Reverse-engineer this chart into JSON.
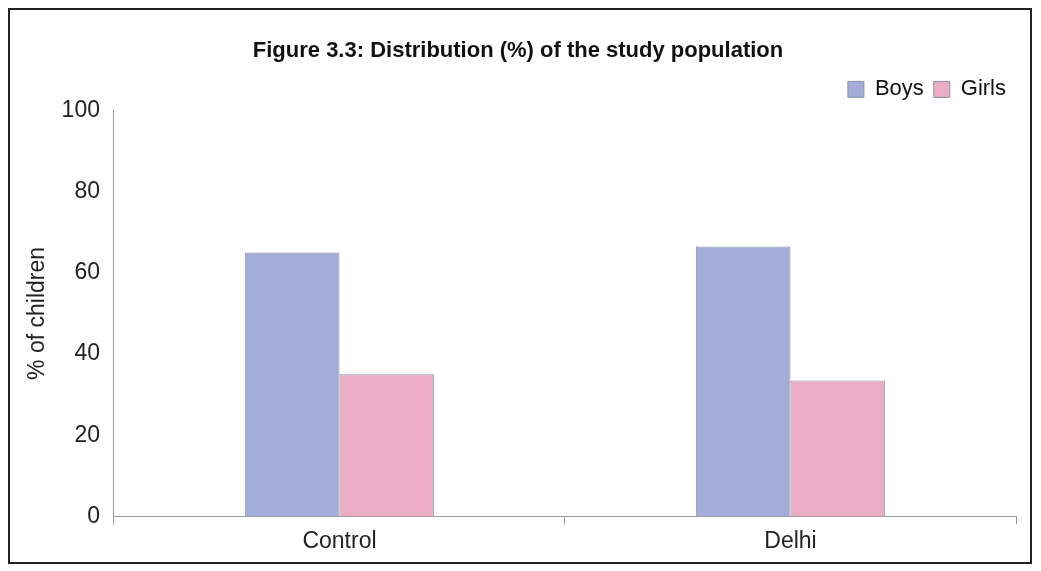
{
  "chart_data": {
    "type": "bar",
    "title": "Figure 3.3: Distribution (%) of the study population",
    "ylabel": "% of children",
    "categories": [
      "Control",
      "Delhi"
    ],
    "series": [
      {
        "name": "Boys",
        "color": "#a3aed8",
        "values": [
          65,
          66.5
        ]
      },
      {
        "name": "Girls",
        "color": "#ebadc4",
        "values": [
          35,
          33.5
        ]
      }
    ],
    "ylim": [
      0,
      100
    ],
    "yticks": [
      0,
      20,
      40,
      60,
      80,
      100
    ],
    "grid": false,
    "legend": "top right"
  }
}
